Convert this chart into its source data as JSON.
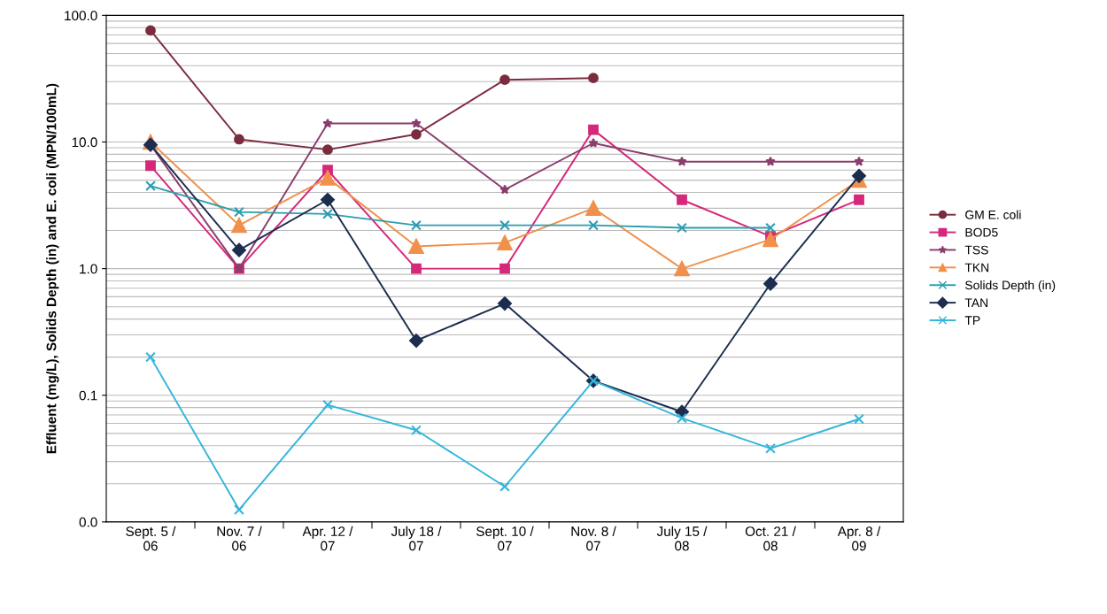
{
  "chart_data": {
    "type": "line",
    "ylabel": "Effluent (mg/L), Solids Depth (in) and E. coli (MPN/100mL)",
    "categories": [
      "Sept. 5 /\n06",
      "Nov. 7 /\n06",
      "Apr. 12 /\n07",
      "July 18 /\n07",
      "Sept. 10 /\n07",
      "Nov. 8 /\n07",
      "July 15 /\n08",
      "Oct. 21 /\n08",
      "Apr. 8 /\n09"
    ],
    "log": "y",
    "ylim": [
      0.01,
      100
    ],
    "yticks": [
      {
        "value": 0.01,
        "label": "0.0"
      },
      {
        "value": 0.1,
        "label": "0.1"
      },
      {
        "value": 1,
        "label": "1.0"
      },
      {
        "value": 10,
        "label": "10.0"
      },
      {
        "value": 100,
        "label": "100.0"
      }
    ],
    "grid": "y",
    "legend": "right",
    "series": [
      {
        "name": "GM E. coli",
        "color": "#7b2c3f",
        "marker": "circle",
        "values": [
          76,
          10.5,
          8.7,
          11.5,
          31,
          32,
          null,
          null,
          null
        ]
      },
      {
        "name": "BOD5",
        "color": "#d6287a",
        "marker": "square",
        "values": [
          6.5,
          1.0,
          6.0,
          1.0,
          1.0,
          12.5,
          3.5,
          1.8,
          3.5
        ]
      },
      {
        "name": "TSS",
        "color": "#8a3d6e",
        "marker": "star",
        "values": [
          9.5,
          1.0,
          14,
          14,
          4.2,
          9.8,
          7,
          7,
          7
        ]
      },
      {
        "name": "TKN",
        "color": "#f0904a",
        "marker": "triangle",
        "values": [
          10,
          2.2,
          5.2,
          1.5,
          1.6,
          3.0,
          1.0,
          1.7,
          5.0
        ]
      },
      {
        "name": "Solids Depth (in)",
        "color": "#2a9db0",
        "marker": "cross",
        "values": [
          4.5,
          2.8,
          2.7,
          2.2,
          2.2,
          2.2,
          2.1,
          2.1,
          null
        ]
      },
      {
        "name": "TAN",
        "color": "#1c2d50",
        "marker": "diamond",
        "values": [
          9.5,
          1.4,
          3.5,
          0.27,
          0.53,
          0.13,
          0.074,
          0.76,
          5.4
        ]
      },
      {
        "name": "TP",
        "color": "#33b5dc",
        "marker": "cross",
        "values": [
          0.2,
          0.0125,
          0.084,
          0.053,
          0.019,
          0.13,
          0.066,
          0.038,
          0.065
        ]
      }
    ]
  }
}
